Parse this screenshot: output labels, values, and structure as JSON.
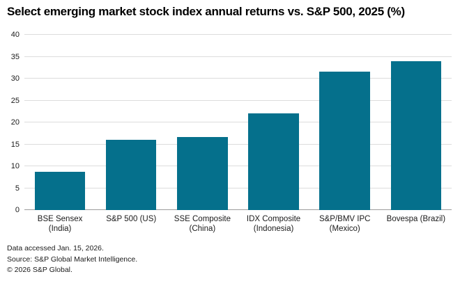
{
  "chart_data": {
    "type": "bar",
    "title": "Select emerging market stock index annual returns vs. S&P 500, 2025 (%)",
    "categories": [
      "BSE Sensex (India)",
      "S&P 500 (US)",
      "SSE Composite (China)",
      "IDX Composite (Indonesia)",
      "S&P/BMV IPC (Mexico)",
      "Bovespa (Brazil)"
    ],
    "category_lines": [
      [
        "BSE Sensex",
        "(India)"
      ],
      [
        "S&P 500 (US)"
      ],
      [
        "SSE Composite",
        "(China)"
      ],
      [
        "IDX Composite",
        "(Indonesia)"
      ],
      [
        "S&P/BMV IPC",
        "(Mexico)"
      ],
      [
        "Bovespa (Brazil)"
      ]
    ],
    "values": [
      8.8,
      16.0,
      16.6,
      22.0,
      31.6,
      34.0
    ],
    "xlabel": "",
    "ylabel": "",
    "ylim": [
      0,
      40
    ],
    "yticks": [
      0,
      5,
      10,
      15,
      20,
      25,
      30,
      35,
      40
    ],
    "grid": "horizontal",
    "legend": "none",
    "bar_color": "#05708C",
    "gridline_color": "#dcdcdc",
    "zero_line_color": "#9b9b9b"
  },
  "footer": {
    "line1": "Data accessed Jan. 15, 2026.",
    "line2": "Source: S&P Global Market Intelligence.",
    "line3": "© 2026 S&P Global."
  }
}
